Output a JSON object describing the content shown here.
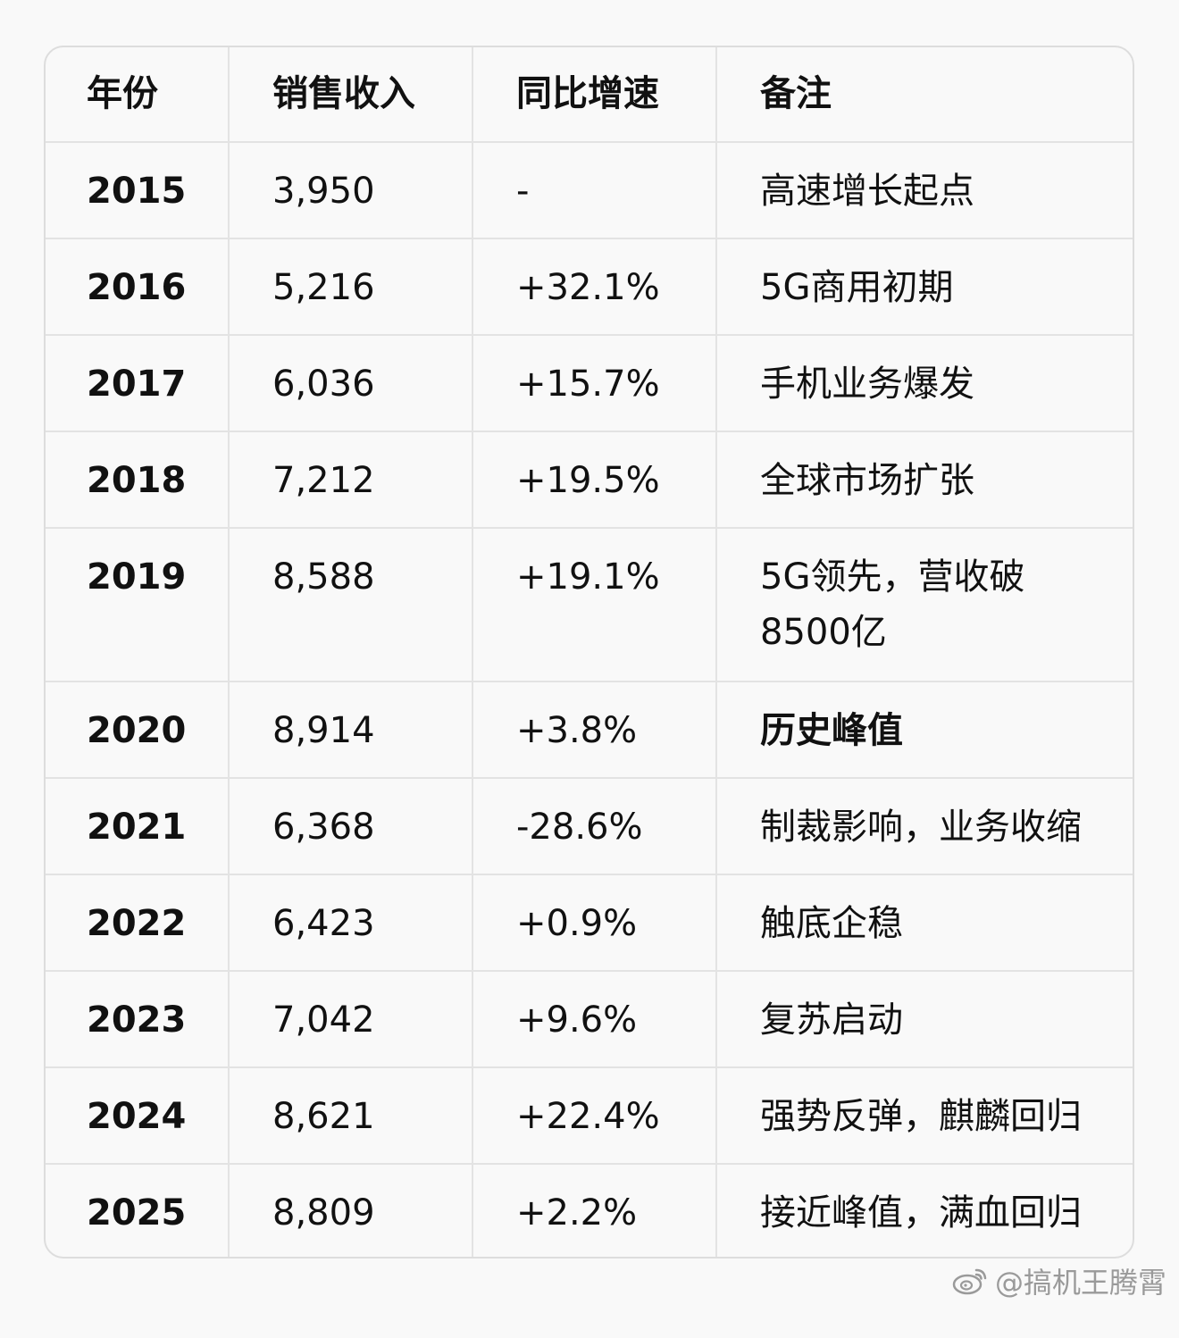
{
  "table": {
    "headers": [
      "年份",
      "销售收入",
      "同比增速",
      "备注"
    ],
    "rows": [
      {
        "year": "2015",
        "revenue": "3,950",
        "growth": "-",
        "note": "高速增长起点"
      },
      {
        "year": "2016",
        "revenue": "5,216",
        "growth": "+32.1%",
        "note": "5G商用初期"
      },
      {
        "year": "2017",
        "revenue": "6,036",
        "growth": "+15.7%",
        "note": "手机业务爆发"
      },
      {
        "year": "2018",
        "revenue": "7,212",
        "growth": "+19.5%",
        "note": "全球市场扩张"
      },
      {
        "year": "2019",
        "revenue": "8,588",
        "growth": "+19.1%",
        "note": "5G领先，营收破 8500亿"
      },
      {
        "year": "2020",
        "revenue": "8,914",
        "growth": "+3.8%",
        "note": "历史峰值"
      },
      {
        "year": "2021",
        "revenue": "6,368",
        "growth": "-28.6%",
        "note": "制裁影响，业务收缩"
      },
      {
        "year": "2022",
        "revenue": "6,423",
        "growth": "+0.9%",
        "note": "触底企稳"
      },
      {
        "year": "2023",
        "revenue": "7,042",
        "growth": "+9.6%",
        "note": "复苏启动"
      },
      {
        "year": "2024",
        "revenue": "8,621",
        "growth": "+22.4%",
        "note": "强势反弹，麒麟回归"
      },
      {
        "year": "2025",
        "revenue": "8,809",
        "growth": "+2.2%",
        "note": "接近峰值，满血回归"
      }
    ]
  },
  "watermark": {
    "icon": "weibo-icon",
    "text": "@搞机王腾霄"
  }
}
